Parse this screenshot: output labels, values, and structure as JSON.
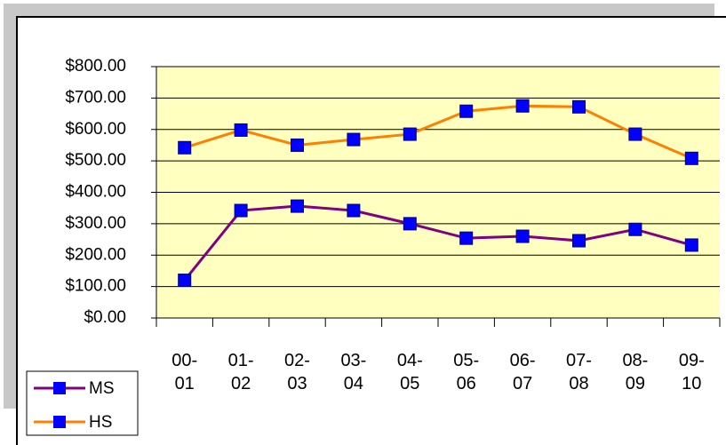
{
  "chart_data": {
    "type": "line",
    "categories": [
      "00-01",
      "01-02",
      "02-03",
      "03-04",
      "04-05",
      "05-06",
      "06-07",
      "07-08",
      "08-09",
      "09-10"
    ],
    "series": [
      {
        "name": "MS",
        "color": "#800080",
        "marker_color": "#0000ff",
        "values": [
          120,
          342,
          356,
          342,
          300,
          254,
          260,
          246,
          282,
          232
        ]
      },
      {
        "name": "HS",
        "color": "#ff7f00",
        "marker_color": "#0000ff",
        "values": [
          542,
          598,
          550,
          568,
          585,
          658,
          675,
          672,
          585,
          508
        ]
      }
    ],
    "ylim": [
      0,
      800
    ],
    "yticks": [
      {
        "value": 0,
        "label": "$0.00"
      },
      {
        "value": 100,
        "label": "$100.00"
      },
      {
        "value": 200,
        "label": "$200.00"
      },
      {
        "value": 300,
        "label": "$300.00"
      },
      {
        "value": 400,
        "label": "$400.00"
      },
      {
        "value": 500,
        "label": "$500.00"
      },
      {
        "value": 600,
        "label": "$600.00"
      },
      {
        "value": 700,
        "label": "$700.00"
      },
      {
        "value": 800,
        "label": "$800.00"
      }
    ],
    "grid": true,
    "plot_background": "#ffffc0",
    "legend": "bottom-left"
  }
}
